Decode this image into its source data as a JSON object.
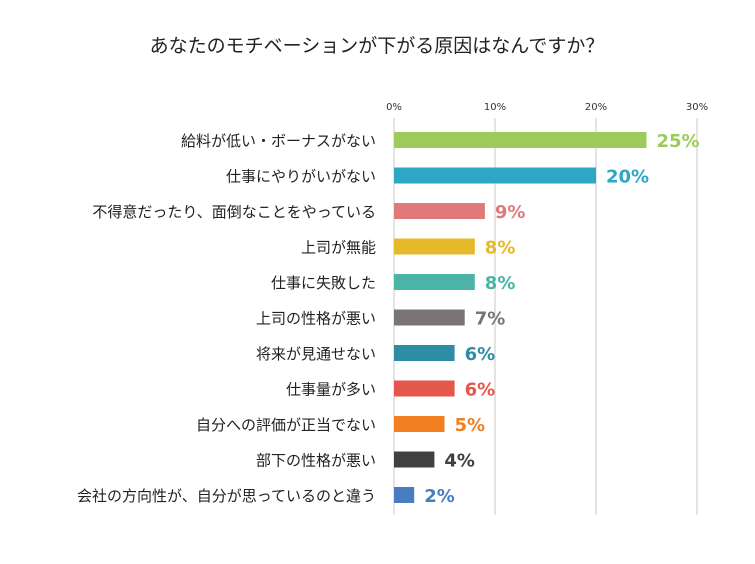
{
  "chart_data": {
    "type": "bar",
    "orientation": "horizontal",
    "title": "あなたのモチベーションが下がる原因はなんですか？",
    "xlabel": "",
    "ylabel": "",
    "xlim": [
      0,
      30
    ],
    "ticks": [
      0,
      10,
      20,
      30
    ],
    "tick_labels": [
      "0%",
      "10%",
      "20%",
      "30%"
    ],
    "grid": true,
    "categories": [
      "給料が低い・ボーナスがない",
      "仕事にやりがいがない",
      "不得意だったり、面倒なことをやっている",
      "上司が無能",
      "仕事に失敗した",
      "上司の性格が悪い",
      "将来が見通せない",
      "仕事量が多い",
      "自分への評価が正当でない",
      "部下の性格が悪い",
      "会社の方向性が、自分が思っているのと違う"
    ],
    "values": [
      25,
      20,
      9,
      8,
      8,
      7,
      6,
      6,
      5,
      4,
      2
    ],
    "value_labels": [
      "25%",
      "20%",
      "9%",
      "8%",
      "8%",
      "7%",
      "6%",
      "6%",
      "5%",
      "4%",
      "2%"
    ],
    "colors": [
      "#9ccb5b",
      "#2ea7c6",
      "#e07a7a",
      "#e6b92a",
      "#4cb3a9",
      "#7a7574",
      "#2f8ca6",
      "#e4574a",
      "#f27e22",
      "#404040",
      "#4a7dbf"
    ]
  }
}
